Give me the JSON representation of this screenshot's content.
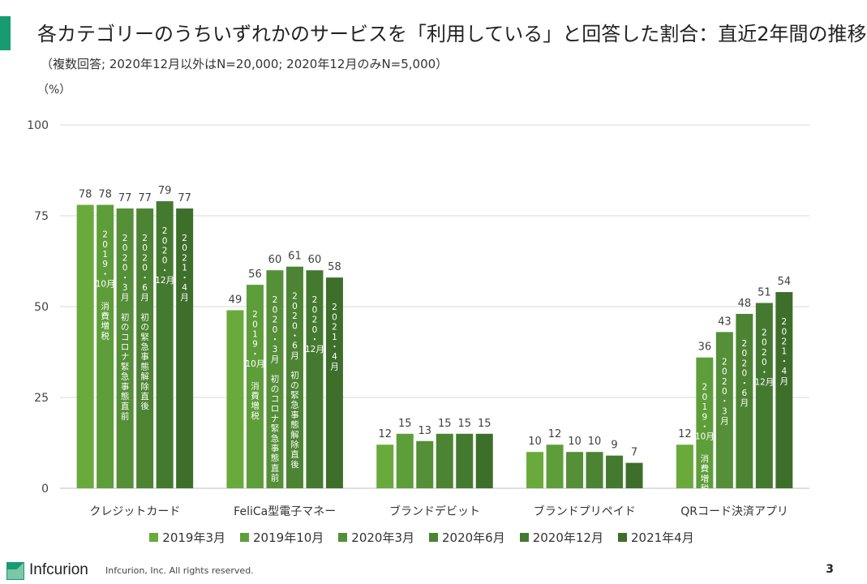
{
  "header": {
    "title": "各カテゴリーのうちいずれかのサービスを「利用している」と回答した割合：直近2年間の推移",
    "subtitle": "（複数回答; 2020年12月以外はN=20,000; 2020年12月のみN=5,000）",
    "unit": "（%）"
  },
  "colors": {
    "accent": "#169b72",
    "series": [
      "#6aaa3c",
      "#5e9e3a",
      "#558f38",
      "#4c8434",
      "#447a30",
      "#3d6f2b"
    ],
    "grid": "#d9d9d9",
    "bar_annotation_text": "#ffffff"
  },
  "chart_data": {
    "type": "bar",
    "ylim": [
      0,
      100
    ],
    "yticks": [
      0,
      25,
      50,
      75,
      100
    ],
    "grid": true,
    "legend_position": "bottom",
    "categories": [
      "クレジットカード",
      "FeliCa型電子マネー",
      "ブランドデビット",
      "ブランドプリペイド",
      "QRコード決済アプリ"
    ],
    "series": [
      {
        "name": "2019年3月",
        "values": [
          78,
          49,
          12,
          10,
          12
        ]
      },
      {
        "name": "2019年10月",
        "values": [
          78,
          56,
          15,
          12,
          36
        ]
      },
      {
        "name": "2020年3月",
        "values": [
          77,
          60,
          13,
          10,
          43
        ]
      },
      {
        "name": "2020年6月",
        "values": [
          77,
          61,
          15,
          10,
          48
        ]
      },
      {
        "name": "2020年12月",
        "values": [
          79,
          60,
          15,
          9,
          51
        ]
      },
      {
        "name": "2021年4月",
        "values": [
          77,
          58,
          15,
          7,
          54
        ]
      }
    ],
    "annotations": [
      {
        "category": 0,
        "series": 1,
        "date": "2019・10月",
        "note": "消費増税"
      },
      {
        "category": 0,
        "series": 2,
        "date": "2020・3月",
        "note": "初のコロナ緊急事態直前"
      },
      {
        "category": 0,
        "series": 3,
        "date": "2020・6月",
        "note": "初の緊急事態解除直後"
      },
      {
        "category": 0,
        "series": 4,
        "date": "2020・12月",
        "note": ""
      },
      {
        "category": 0,
        "series": 5,
        "date": "2021・4月",
        "note": ""
      },
      {
        "category": 1,
        "series": 1,
        "date": "2019・10月",
        "note": "消費増税"
      },
      {
        "category": 1,
        "series": 2,
        "date": "2020・3月",
        "note": "初のコロナ緊急事態直前"
      },
      {
        "category": 1,
        "series": 3,
        "date": "2020・6月",
        "note": "初の緊急事態解除直後"
      },
      {
        "category": 1,
        "series": 4,
        "date": "2020・12月",
        "note": ""
      },
      {
        "category": 1,
        "series": 5,
        "date": "2021・4月",
        "note": ""
      },
      {
        "category": 4,
        "series": 1,
        "date": "2019・10月",
        "note": "消費増税"
      },
      {
        "category": 4,
        "series": 2,
        "date": "2020・3月",
        "note": ""
      },
      {
        "category": 4,
        "series": 3,
        "date": "2020・6月",
        "note": ""
      },
      {
        "category": 4,
        "series": 4,
        "date": "2020・12月",
        "note": ""
      },
      {
        "category": 4,
        "series": 5,
        "date": "2021・4月",
        "note": ""
      }
    ]
  },
  "footer": {
    "logo_text": "Infcurion",
    "copyright": "Infcurion, Inc.  All rights reserved.",
    "page_number": "3"
  }
}
